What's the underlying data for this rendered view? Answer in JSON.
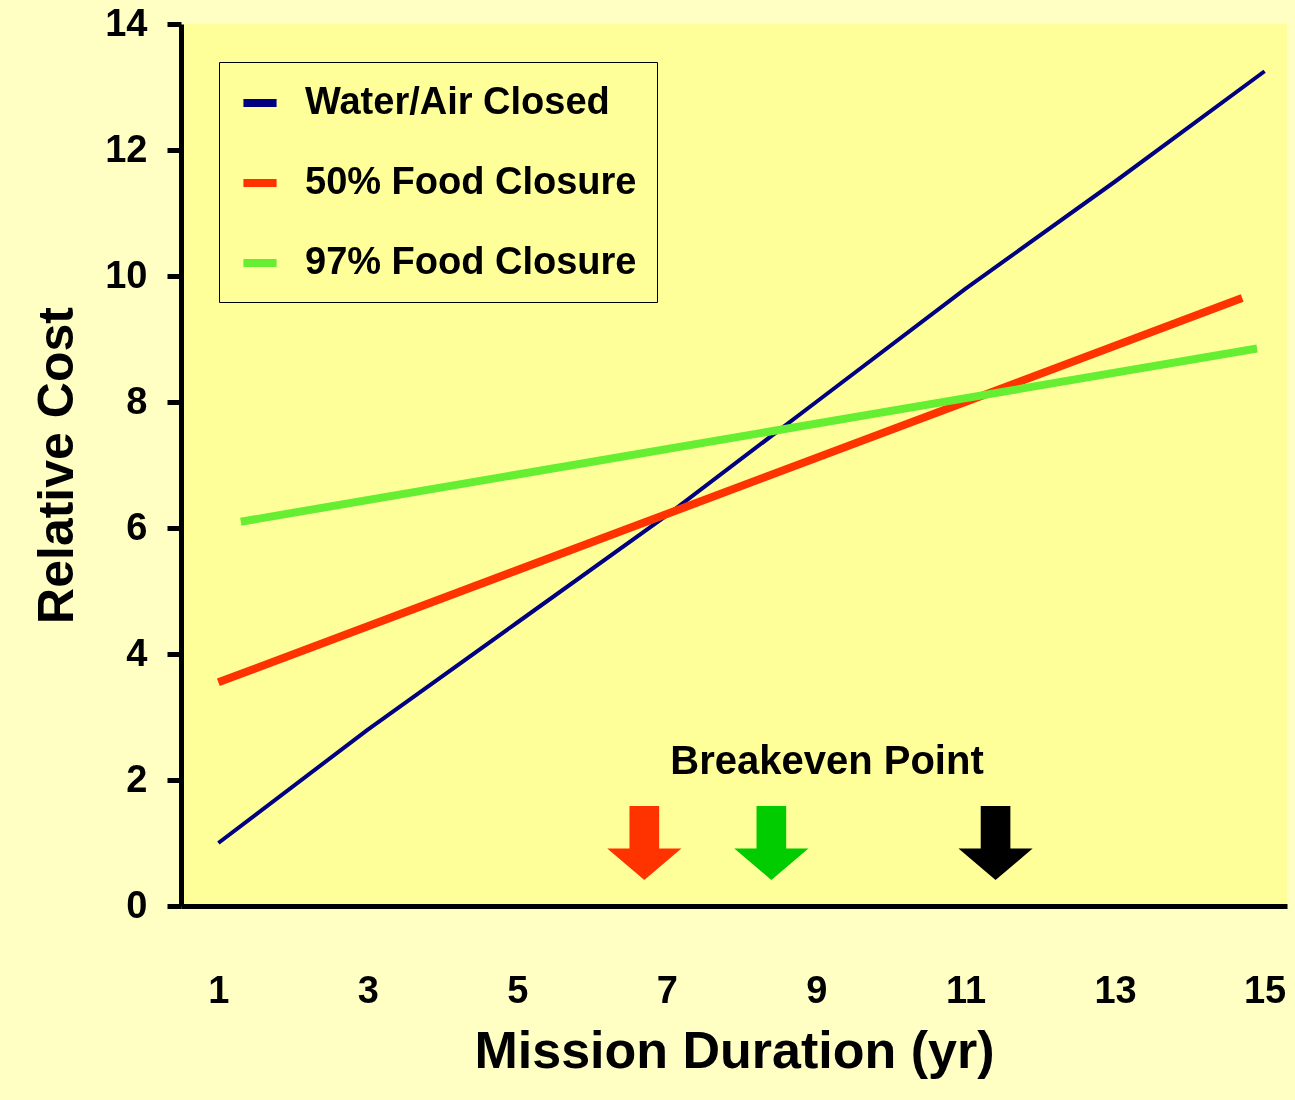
{
  "chart_data": {
    "type": "line",
    "xlabel": "Mission Duration (yr)",
    "ylabel": "Relative Cost",
    "xlim": [
      0.5,
      15.3
    ],
    "ylim": [
      0,
      14
    ],
    "xticks": [
      1,
      3,
      5,
      7,
      9,
      11,
      13,
      15
    ],
    "yticks": [
      {
        "value": 0,
        "label": "0"
      },
      {
        "value": 2,
        "label": "2"
      },
      {
        "value": 4,
        "label": "4"
      },
      {
        "value": 6,
        "label": "6"
      },
      {
        "value": 8,
        "label": "8"
      },
      {
        "value": 10,
        "label": "10"
      },
      {
        "value": 12,
        "label": "12"
      },
      {
        "value": 14,
        "label": "14"
      }
    ],
    "grid": false,
    "legend": "top left",
    "line_style": "solid",
    "series": [
      {
        "name": "Water/Air Closed",
        "color": "#000080",
        "x": [
          1,
          3,
          5,
          7,
          9,
          11,
          13,
          15
        ],
        "values": [
          1.0,
          2.8,
          4.5,
          6.2,
          8.0,
          9.8,
          11.5,
          13.25
        ]
      },
      {
        "name": "50% Food Closure",
        "color": "#ff3300",
        "x": [
          1,
          14.7
        ],
        "values": [
          3.55,
          9.65
        ]
      },
      {
        "name": "97% Food Closure",
        "color": "#66ee33",
        "x": [
          1.3,
          14.9
        ],
        "values": [
          6.1,
          8.85
        ]
      },
      {
        "type": "scatter",
        "marker": "triangle",
        "x": [
          6.7,
          8.4,
          11.4
        ],
        "values": [
          1.0,
          1.0,
          1.0
        ],
        "colors": [
          "#ff3300",
          "#00cc00",
          "#000000"
        ]
      }
    ],
    "annotations": [
      "Breakeven Point"
    ]
  }
}
